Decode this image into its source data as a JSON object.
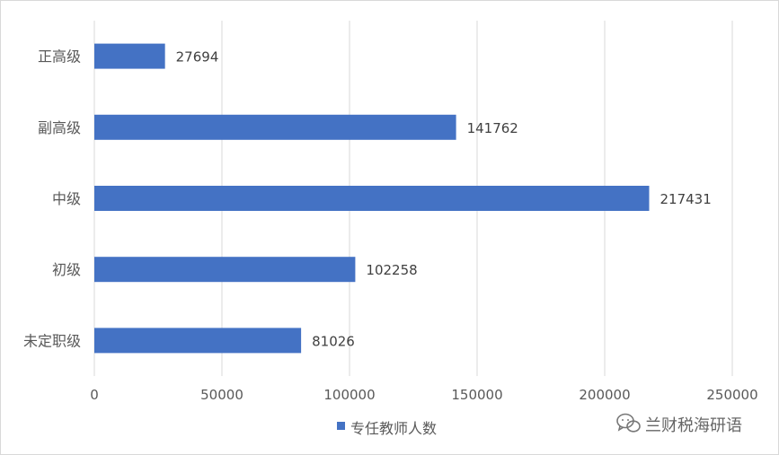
{
  "chart_data": {
    "type": "bar",
    "orientation": "horizontal",
    "categories": [
      "正高级",
      "副高级",
      "中级",
      "初级",
      "未定职级"
    ],
    "series": [
      {
        "name": "专任教师人数",
        "values": [
          27694,
          141762,
          217431,
          102258,
          81026
        ],
        "color": "#4472C4"
      }
    ],
    "xlim": [
      0,
      250000
    ],
    "x_ticks": [
      0,
      50000,
      100000,
      150000,
      200000,
      250000
    ],
    "x_tick_labels": [
      "0",
      "50000",
      "100000",
      "150000",
      "200000",
      "250000"
    ],
    "data_labels": [
      "27694",
      "141762",
      "217431",
      "102258",
      "81026"
    ],
    "grid": "vertical",
    "legend": "bottom"
  },
  "watermark": {
    "text": "兰财税海研语",
    "icon": "wechat-icon"
  }
}
